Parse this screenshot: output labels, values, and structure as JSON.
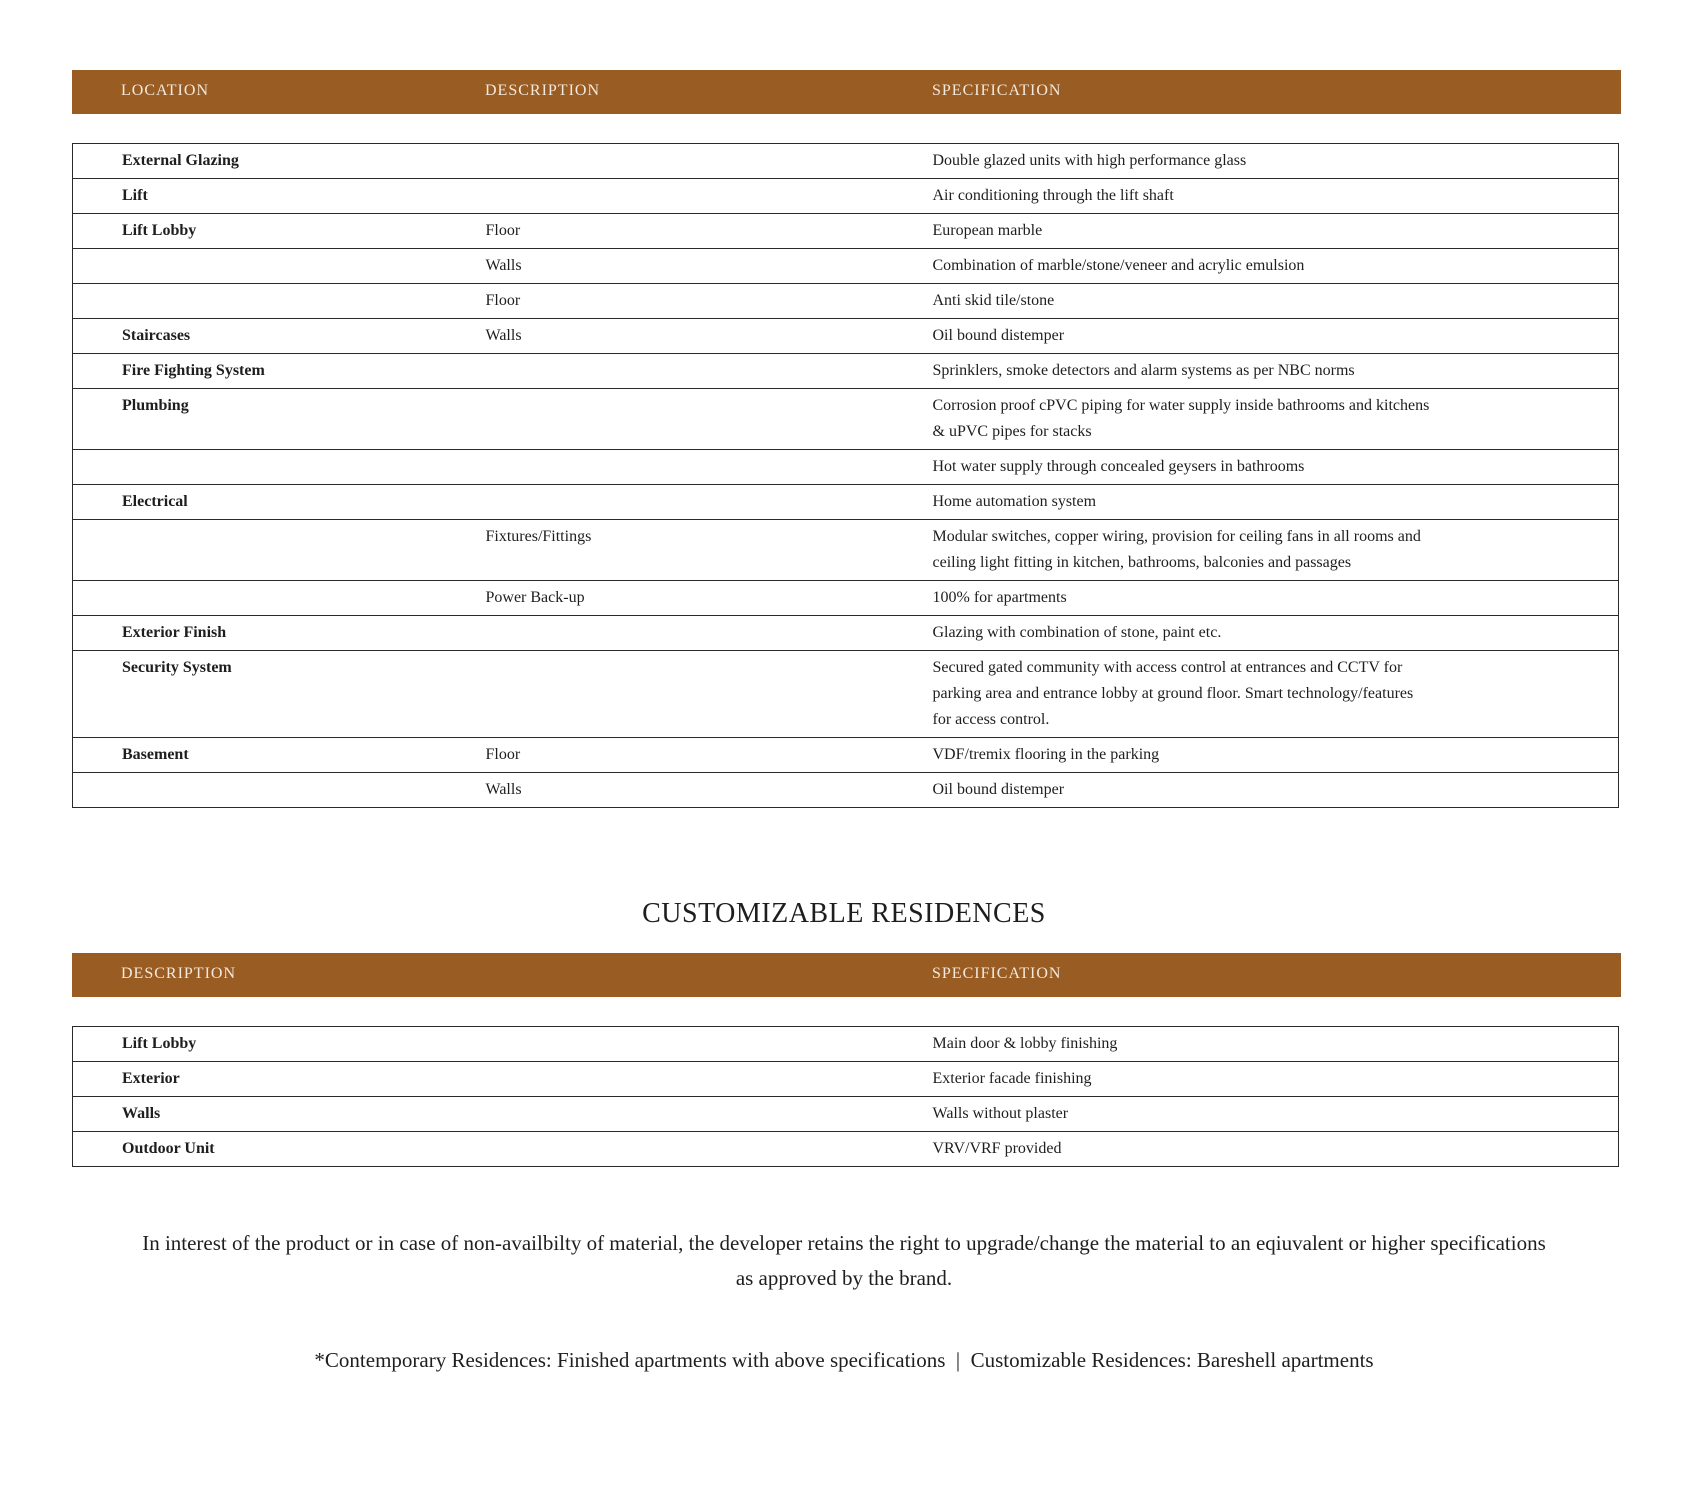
{
  "colors": {
    "header_bar": "#995c23",
    "header_text": "#f4e9dc",
    "border": "#2a2a2a"
  },
  "table1": {
    "headers": [
      "LOCATION",
      "DESCRIPTION",
      "SPECIFICATION"
    ],
    "rows": [
      {
        "location": "External Glazing",
        "description": "",
        "specification": [
          "Double glazed units with high performance glass"
        ]
      },
      {
        "location": "Lift",
        "description": "",
        "specification": [
          "Air conditioning through the lift shaft"
        ]
      },
      {
        "location": "Lift Lobby",
        "description": "Floor",
        "specification": [
          "European marble"
        ]
      },
      {
        "location": "",
        "description": "Walls",
        "specification": [
          "Combination of marble/stone/veneer and acrylic emulsion"
        ]
      },
      {
        "location": "",
        "description": "Floor",
        "specification": [
          "Anti skid tile/stone"
        ]
      },
      {
        "location": "Staircases",
        "description": "Walls",
        "specification": [
          "Oil bound distemper"
        ]
      },
      {
        "location": "Fire Fighting System",
        "description": "",
        "specification": [
          "Sprinklers, smoke detectors and alarm systems as per NBC norms"
        ]
      },
      {
        "location": "Plumbing",
        "description": "",
        "specification": [
          "Corrosion proof cPVC piping for water supply inside bathrooms and kitchens",
          "& uPVC pipes for stacks"
        ]
      },
      {
        "location": "",
        "description": "",
        "specification": [
          "Hot water supply through concealed geysers in bathrooms"
        ]
      },
      {
        "location": "Electrical",
        "description": "",
        "specification": [
          "Home automation system"
        ]
      },
      {
        "location": "",
        "description": "Fixtures/Fittings",
        "specification": [
          "Modular switches, copper wiring, provision for ceiling fans in all rooms and",
          "ceiling light fitting in kitchen, bathrooms, balconies and passages"
        ]
      },
      {
        "location": "",
        "description": "Power Back-up",
        "specification": [
          "100% for apartments"
        ]
      },
      {
        "location": "Exterior Finish",
        "description": "",
        "specification": [
          "Glazing with combination of stone, paint etc."
        ]
      },
      {
        "location": "Security System",
        "description": "",
        "specification": [
          "Secured gated community with access control at entrances and CCTV for",
          "parking area and entrance lobby at ground floor. Smart technology/features",
          "for access control."
        ]
      },
      {
        "location": "Basement",
        "description": "Floor",
        "specification": [
          "VDF/tremix flooring in the parking"
        ]
      },
      {
        "location": "",
        "description": "Walls",
        "specification": [
          "Oil bound distemper"
        ]
      }
    ]
  },
  "section_title": "CUSTOMIZABLE RESIDENCES",
  "table2": {
    "headers": [
      "DESCRIPTION",
      "SPECIFICATION"
    ],
    "rows": [
      {
        "description": "Lift Lobby",
        "specification": [
          "Main door & lobby finishing"
        ]
      },
      {
        "description": "Exterior",
        "specification": [
          "Exterior facade finishing"
        ]
      },
      {
        "description": "Walls",
        "specification": [
          "Walls without plaster"
        ]
      },
      {
        "description": "Outdoor Unit",
        "specification": [
          "VRV/VRF provided"
        ]
      }
    ]
  },
  "disclaimer": [
    "In interest of the product or in case of non-availbilty of material, the developer retains the right to upgrade/change the material to an eqiuvalent or higher specifications",
    "as approved by the brand."
  ],
  "footer_note": "*Contemporary Residences: Finished apartments with above specifications  |  Customizable Residences: Bareshell apartments"
}
